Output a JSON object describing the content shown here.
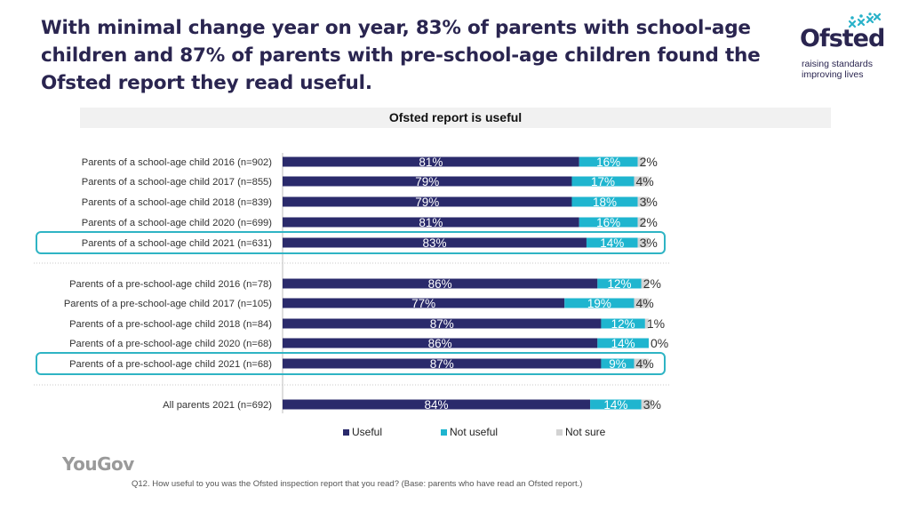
{
  "header": {
    "title": "With minimal change year on year, 83% of parents with school-age children and 87% of parents with pre-school-age children found the Ofsted report they read useful.",
    "logo_word": "Ofsted",
    "logo_line1": "raising standards",
    "logo_line2": "improving lives",
    "logo_icon": "stars-icon"
  },
  "colors": {
    "useful": "#2a2a6b",
    "not_useful": "#1fb5cf",
    "not_sure": "#d3d3d3",
    "highlight": "#2fb4c4"
  },
  "chart_data": {
    "type": "bar",
    "orientation": "horizontal",
    "stacked": true,
    "title": "Ofsted report is useful",
    "categories": [
      "Parents of a school-age child 2016 (n=902)",
      "Parents of a school-age child 2017 (n=855)",
      "Parents of a school-age child 2018 (n=839)",
      "Parents of a school-age child 2020 (n=699)",
      "Parents of a school-age child 2021 (n=631)",
      "Parents of a pre-school-age child 2016 (n=78)",
      "Parents of a pre-school-age child 2017 (n=105)",
      "Parents of a pre-school-age child 2018 (n=84)",
      "Parents of a pre-school-age child 2020 (n=68)",
      "Parents of a pre-school-age child 2021 (n=68)",
      "All parents 2021 (n=692)"
    ],
    "groups": [
      [
        0,
        1,
        2,
        3,
        4
      ],
      [
        5,
        6,
        7,
        8,
        9
      ],
      [
        10
      ]
    ],
    "highlighted": [
      4,
      9
    ],
    "series": [
      {
        "name": "Useful",
        "values": [
          81,
          79,
          79,
          81,
          83,
          86,
          77,
          87,
          86,
          87,
          84
        ]
      },
      {
        "name": "Not useful",
        "values": [
          16,
          17,
          18,
          16,
          14,
          12,
          19,
          12,
          14,
          9,
          14
        ]
      },
      {
        "name": "Not sure",
        "values": [
          2,
          4,
          3,
          2,
          3,
          2,
          4,
          1,
          0,
          4,
          3
        ]
      }
    ],
    "xlim": [
      0,
      100
    ],
    "value_suffix": "%",
    "legend_position": "bottom"
  },
  "legend": {
    "useful": "Useful",
    "not_useful": "Not useful",
    "not_sure": "Not sure"
  },
  "footer": {
    "brand": "YouGov",
    "footnote": "Q12. How useful to you was the Ofsted inspection report that you read? (Base: parents who have read an Ofsted report.)"
  }
}
